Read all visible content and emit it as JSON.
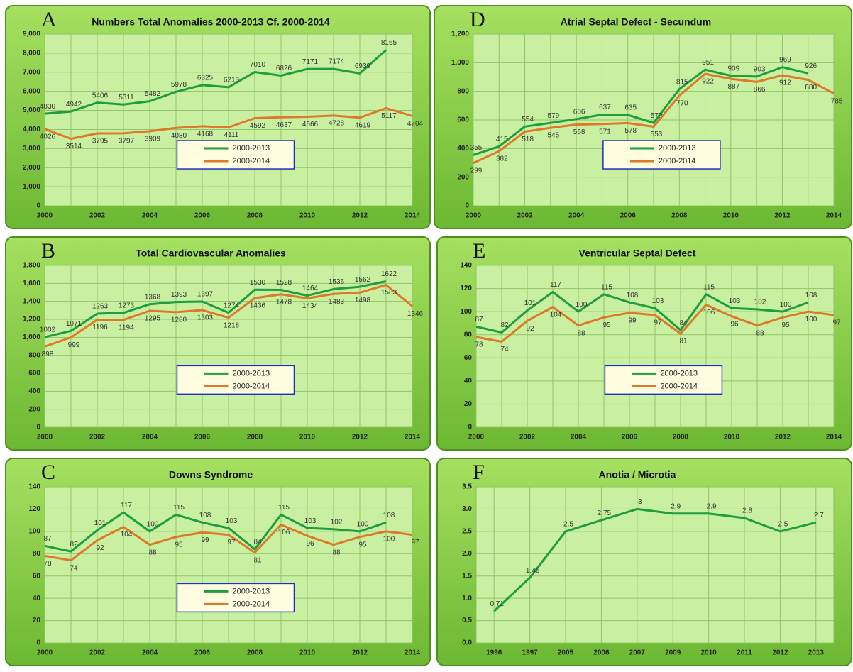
{
  "chart_data": [
    {
      "type": "line",
      "panel_label": "A",
      "title": "Numbers Total Anomalies 2000-2013 Cf. 2000-2014",
      "x": [
        2000,
        2001,
        2002,
        2003,
        2004,
        2005,
        2006,
        2007,
        2008,
        2009,
        2010,
        2011,
        2012,
        2013,
        2014
      ],
      "series": [
        {
          "name": "2000-2013",
          "color": "#1e9e3e",
          "values": [
            4830,
            4942,
            5406,
            5311,
            5482,
            5978,
            6325,
            6213,
            7010,
            6826,
            7171,
            7174,
            6939,
            8165,
            null
          ]
        },
        {
          "name": "2000-2014",
          "color": "#e0782a",
          "values": [
            4026,
            3514,
            3795,
            3797,
            3909,
            4080,
            4168,
            4111,
            4592,
            4637,
            4666,
            4728,
            4619,
            5117,
            4704
          ]
        }
      ],
      "xlim": [
        2000,
        2014
      ],
      "xticks": [
        2000,
        2002,
        2004,
        2006,
        2008,
        2010,
        2012,
        2014
      ],
      "ylim": [
        0,
        9000
      ],
      "yticks": [
        0,
        {
          "value": 1000,
          "label": "1,000"
        },
        {
          "value": 2000,
          "label": "2,000"
        },
        {
          "value": 3000,
          "label": "3,000"
        },
        {
          "value": 4000,
          "label": "4,000"
        },
        {
          "value": 5000,
          "label": "5,000"
        },
        {
          "value": 6000,
          "label": "6,000"
        },
        {
          "value": 7000,
          "label": "7,000"
        },
        {
          "value": 8000,
          "label": "8,000"
        },
        {
          "value": 9000,
          "label": "9,000"
        }
      ],
      "grid": true,
      "legend": "center"
    },
    {
      "type": "line",
      "panel_label": "B",
      "title": "Total Cardiovascular Anomalies",
      "x": [
        2000,
        2001,
        2002,
        2003,
        2004,
        2005,
        2006,
        2007,
        2008,
        2009,
        2010,
        2011,
        2012,
        2013,
        2014
      ],
      "series": [
        {
          "name": "2000-2013",
          "color": "#1e9e3e",
          "values": [
            1002,
            1071,
            1263,
            1273,
            1368,
            1393,
            1397,
            1274,
            1530,
            1528,
            1464,
            1536,
            1562,
            1622,
            null
          ]
        },
        {
          "name": "2000-2014",
          "color": "#e0782a",
          "values": [
            898,
            999,
            1196,
            1194,
            1295,
            1280,
            1303,
            1218,
            1436,
            1478,
            1434,
            1483,
            1498,
            1583,
            1346
          ]
        }
      ],
      "xlim": [
        2000,
        2014
      ],
      "xticks": [
        2000,
        2002,
        2004,
        2006,
        2008,
        2010,
        2012,
        2014
      ],
      "ylim": [
        0,
        1800
      ],
      "yticks": [
        0,
        200,
        400,
        600,
        800,
        {
          "value": 1000,
          "label": "1,000"
        },
        {
          "value": 1200,
          "label": "1,200"
        },
        {
          "value": 1400,
          "label": "1,400"
        },
        {
          "value": 1600,
          "label": "1,600"
        },
        {
          "value": 1800,
          "label": "1,800"
        }
      ],
      "grid": true,
      "legend": "center"
    },
    {
      "type": "line",
      "panel_label": "C",
      "title": "Downs Syndrome",
      "x": [
        2000,
        2001,
        2002,
        2003,
        2004,
        2005,
        2006,
        2007,
        2008,
        2009,
        2010,
        2011,
        2012,
        2013,
        2014
      ],
      "series": [
        {
          "name": "2000-2013",
          "color": "#1e9e3e",
          "values": [
            87,
            82,
            101,
            117,
            100,
            115,
            108,
            103,
            84,
            115,
            103,
            102,
            100,
            108,
            null
          ]
        },
        {
          "name": "2000-2014",
          "color": "#e0782a",
          "values": [
            78,
            74,
            92,
            104,
            88,
            95,
            99,
            97,
            81,
            106,
            96,
            88,
            95,
            100,
            97
          ]
        }
      ],
      "xlim": [
        2000,
        2014
      ],
      "xticks": [
        2000,
        2002,
        2004,
        2006,
        2008,
        2010,
        2012,
        2014
      ],
      "ylim": [
        0,
        140
      ],
      "yticks": [
        0,
        20,
        40,
        60,
        80,
        100,
        120,
        140
      ],
      "grid": true,
      "legend": "center"
    },
    {
      "type": "line",
      "panel_label": "D",
      "title": "Atrial Septal Defect - Secundum",
      "x": [
        2000,
        2001,
        2002,
        2003,
        2004,
        2005,
        2006,
        2007,
        2008,
        2009,
        2010,
        2011,
        2012,
        2013,
        2014
      ],
      "series": [
        {
          "name": "2000-2013",
          "color": "#1e9e3e",
          "values": [
            355,
            415,
            554,
            579,
            606,
            637,
            635,
            579,
            815,
            951,
            909,
            903,
            969,
            926,
            null
          ]
        },
        {
          "name": "2000-2014",
          "color": "#e0782a",
          "values": [
            299,
            382,
            518,
            545,
            568,
            571,
            578,
            553,
            770,
            922,
            887,
            866,
            912,
            880,
            785
          ]
        }
      ],
      "xlim": [
        2000,
        2014
      ],
      "xticks": [
        2000,
        2002,
        2004,
        2006,
        2008,
        2010,
        2012,
        2014
      ],
      "ylim": [
        0,
        1200
      ],
      "yticks": [
        0,
        200,
        400,
        600,
        800,
        {
          "value": 1000,
          "label": "1,000"
        },
        {
          "value": 1200,
          "label": "1,200"
        }
      ],
      "grid": true,
      "legend": "center"
    },
    {
      "type": "line",
      "panel_label": "E",
      "title": "Ventricular Septal Defect",
      "x": [
        2000,
        2001,
        2002,
        2003,
        2004,
        2005,
        2006,
        2007,
        2008,
        2009,
        2010,
        2011,
        2012,
        2013,
        2014
      ],
      "series": [
        {
          "name": "2000-2013",
          "color": "#1e9e3e",
          "values": [
            87,
            82,
            101,
            117,
            100,
            115,
            108,
            103,
            84,
            115,
            103,
            102,
            100,
            108,
            null
          ]
        },
        {
          "name": "2000-2014",
          "color": "#e0782a",
          "values": [
            78,
            74,
            92,
            104,
            88,
            95,
            99,
            97,
            81,
            106,
            96,
            88,
            95,
            100,
            97
          ]
        }
      ],
      "xlim": [
        2000,
        2014
      ],
      "xticks": [
        2000,
        2002,
        2004,
        2006,
        2008,
        2010,
        2012,
        2014
      ],
      "ylim": [
        0,
        140
      ],
      "yticks": [
        0,
        20,
        40,
        60,
        80,
        100,
        120,
        140
      ],
      "grid": true,
      "legend": "center"
    },
    {
      "type": "line",
      "panel_label": "F",
      "title": "Anotia / Microtia",
      "categories": [
        "1996",
        "1997",
        "2005",
        "2006",
        "2007",
        "2009",
        "2010",
        "2011",
        "2012",
        "2013"
      ],
      "values": [
        0.71,
        1.46,
        2.5,
        2.75,
        3,
        2.9,
        2.9,
        2.8,
        2.5,
        2.7
      ],
      "color": "#1e9e3e",
      "ylim": [
        0,
        3.5
      ],
      "yticks": [
        {
          "value": 0,
          "label": "0.0"
        },
        0.5,
        {
          "value": 1,
          "label": "1.0"
        },
        1.5,
        {
          "value": 2,
          "label": "2.0"
        },
        2.5,
        {
          "value": 3,
          "label": "3.0"
        },
        3.5
      ],
      "grid": true
    }
  ]
}
